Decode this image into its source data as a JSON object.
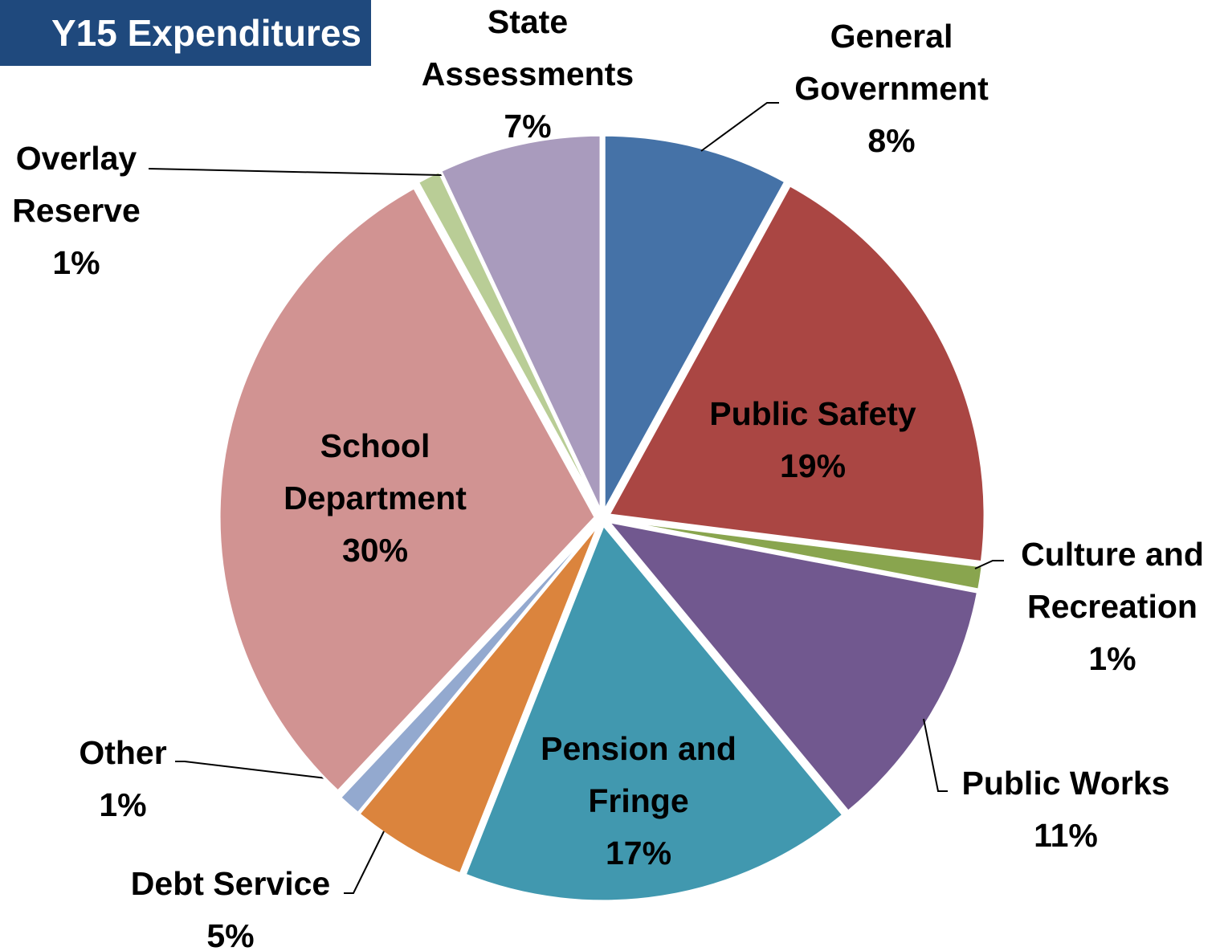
{
  "chart_data": {
    "type": "pie",
    "title": "Y15 Expenditures",
    "categories": [
      "General Government",
      "Public Safety",
      "Culture and Recreation",
      "Public Works",
      "Pension and Fringe",
      "Debt Service",
      "Other",
      "School Department",
      "Overlay Reserve",
      "State Assessments"
    ],
    "values": [
      8,
      19,
      1,
      11,
      17,
      5,
      1,
      30,
      1,
      7
    ],
    "value_labels": [
      "8%",
      "19%",
      "1%",
      "11%",
      "17%",
      "5%",
      "1%",
      "30%",
      "1%",
      "7%"
    ],
    "colors": [
      "#4572a7",
      "#aa4643",
      "#89a54e",
      "#71588f",
      "#4198af",
      "#db843d",
      "#93a9cf",
      "#d19392",
      "#b9cd96",
      "#a99bbd"
    ]
  }
}
